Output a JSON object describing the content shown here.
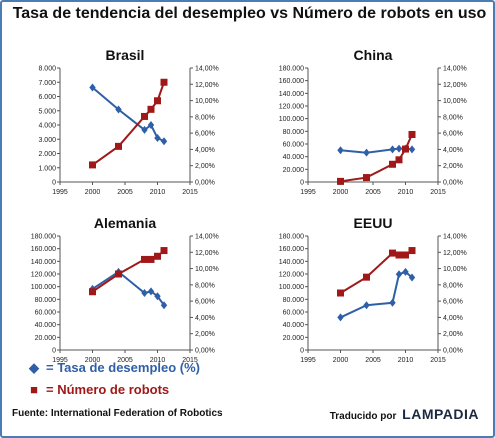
{
  "title": "Tasa de tendencia del desempleo vs Número de robots en uso",
  "legend": {
    "desempleo": {
      "marker": "◆",
      "label": "=  Tasa de desempleo (%)",
      "color": "#2f5fa6"
    },
    "robots": {
      "marker": "■",
      "label": "= Número de robots",
      "color": "#a01818"
    }
  },
  "source": "Fuente: International Federation of Robotics",
  "credit": {
    "prefix": "Traducido por",
    "brand": "LAMPADIA"
  },
  "chart_data": [
    {
      "id": "brasil",
      "type": "line",
      "title": "Brasil",
      "xticks": [
        1995,
        2000,
        2005,
        2010,
        2015
      ],
      "xlim": [
        1995,
        2015
      ],
      "yticks_left": [
        "0",
        "1.000",
        "2.000",
        "3.000",
        "4.000",
        "5.000",
        "6.000",
        "7.000",
        "8.000"
      ],
      "ylim_left": [
        0,
        8000
      ],
      "yticks_right": [
        "0,00%",
        "2,00%",
        "4,00%",
        "6,00%",
        "8,00%",
        "10,00%",
        "12,00%",
        "14,00%"
      ],
      "ylim_right": [
        0,
        14
      ],
      "series": [
        {
          "name": "Tasa de desempleo (%)",
          "axis": "right",
          "color": "#2f5fa6",
          "marker": "diamond",
          "x": [
            2000,
            2004,
            2008,
            2009,
            2010,
            2011
          ],
          "y": [
            11.6,
            8.9,
            6.4,
            7.0,
            5.4,
            5.0
          ]
        },
        {
          "name": "Número de robots",
          "axis": "left",
          "color": "#a01818",
          "marker": "square",
          "x": [
            2000,
            2004,
            2008,
            2009,
            2010,
            2011
          ],
          "y": [
            1200,
            2500,
            4600,
            5100,
            5700,
            7000
          ]
        }
      ]
    },
    {
      "id": "china",
      "type": "line",
      "title": "China",
      "xticks": [
        1995,
        2000,
        2005,
        2010,
        2015
      ],
      "xlim": [
        1995,
        2015
      ],
      "yticks_left": [
        "0",
        "20.000",
        "40.000",
        "60.000",
        "80.000",
        "100.000",
        "120.000",
        "140.000",
        "160.000",
        "180.000"
      ],
      "ylim_left": [
        0,
        180000
      ],
      "yticks_right": [
        "0,00%",
        "2,00%",
        "4,00%",
        "6,00%",
        "8,00%",
        "10,00%",
        "12,00%",
        "14,00%"
      ],
      "ylim_right": [
        0,
        14
      ],
      "series": [
        {
          "name": "Tasa de desempleo (%)",
          "axis": "right",
          "color": "#2f5fa6",
          "marker": "diamond",
          "x": [
            2000,
            2004,
            2008,
            2009,
            2010,
            2011
          ],
          "y": [
            3.9,
            3.6,
            4.0,
            4.1,
            4.1,
            4.0
          ]
        },
        {
          "name": "Número de robots",
          "axis": "left",
          "color": "#a01818",
          "marker": "square",
          "x": [
            2000,
            2004,
            2008,
            2009,
            2010,
            2011
          ],
          "y": [
            1000,
            7000,
            28000,
            35000,
            52000,
            75000
          ]
        }
      ]
    },
    {
      "id": "alemania",
      "type": "line",
      "title": "Alemania",
      "xticks": [
        1995,
        2000,
        2005,
        2010,
        2015
      ],
      "xlim": [
        1995,
        2015
      ],
      "yticks_left": [
        "0",
        "20.000",
        "40.000",
        "60.000",
        "80.000",
        "100.000",
        "120.000",
        "140.000",
        "160.000",
        "180.000"
      ],
      "ylim_left": [
        0,
        180000
      ],
      "yticks_right": [
        "0,00%",
        "2,00%",
        "4,00%",
        "6,00%",
        "8,00%",
        "10,00%",
        "12,00%",
        "14,00%"
      ],
      "ylim_right": [
        0,
        14
      ],
      "series": [
        {
          "name": "Tasa de desempleo (%)",
          "axis": "right",
          "color": "#2f5fa6",
          "marker": "diamond",
          "x": [
            2000,
            2004,
            2008,
            2009,
            2010,
            2011
          ],
          "y": [
            7.5,
            9.6,
            7.0,
            7.2,
            6.6,
            5.5
          ]
        },
        {
          "name": "Número de robots",
          "axis": "left",
          "color": "#a01818",
          "marker": "square",
          "x": [
            2000,
            2004,
            2008,
            2009,
            2010,
            2011
          ],
          "y": [
            92000,
            120000,
            143000,
            143000,
            148000,
            157000
          ]
        }
      ]
    },
    {
      "id": "eeuu",
      "type": "line",
      "title": "EEUU",
      "xticks": [
        1995,
        2000,
        2005,
        2010,
        2015
      ],
      "xlim": [
        1995,
        2015
      ],
      "yticks_left": [
        "0",
        "20.000",
        "40.000",
        "60.000",
        "80.000",
        "100.000",
        "120.000",
        "140.000",
        "160.000",
        "180.000"
      ],
      "ylim_left": [
        0,
        180000
      ],
      "yticks_right": [
        "0,00%",
        "2,00%",
        "4,00%",
        "6,00%",
        "8,00%",
        "10,00%",
        "12,00%",
        "14,00%"
      ],
      "ylim_right": [
        0,
        14
      ],
      "series": [
        {
          "name": "Tasa de desempleo (%)",
          "axis": "right",
          "color": "#2f5fa6",
          "marker": "diamond",
          "x": [
            2000,
            2004,
            2008,
            2009,
            2010,
            2011
          ],
          "y": [
            4.0,
            5.5,
            5.8,
            9.3,
            9.6,
            8.9
          ]
        },
        {
          "name": "Número de robots",
          "axis": "left",
          "color": "#a01818",
          "marker": "square",
          "x": [
            2000,
            2004,
            2008,
            2009,
            2010,
            2011
          ],
          "y": [
            90000,
            115000,
            153000,
            150000,
            150000,
            157000
          ]
        }
      ]
    }
  ]
}
